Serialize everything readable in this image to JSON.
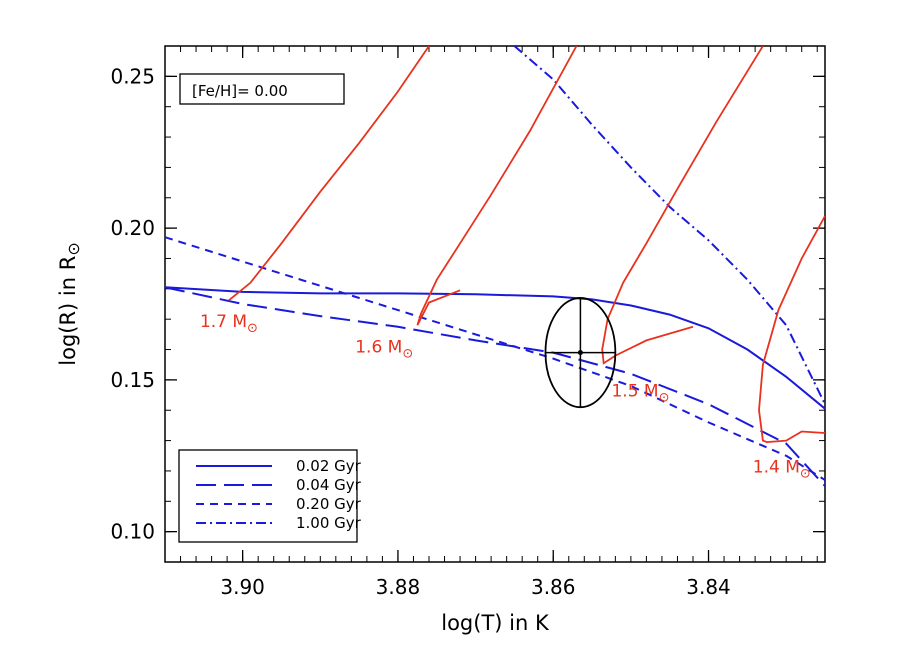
{
  "chart_data": {
    "type": "line",
    "xlabel": "log(T) in K",
    "ylabel": "log(R) in R",
    "ylabel_symbol": "⊙",
    "xlim": [
      3.91,
      3.825
    ],
    "ylim": [
      0.09,
      0.26
    ],
    "x_ticks": [
      3.9,
      3.88,
      3.86,
      3.84
    ],
    "x_tick_labels": [
      "3.90",
      "3.88",
      "3.86",
      "3.84"
    ],
    "y_ticks": [
      0.1,
      0.15,
      0.2,
      0.25
    ],
    "y_tick_labels": [
      "0.10",
      "0.15",
      "0.20",
      "0.25"
    ],
    "metallicity_label": "[Fe/H]= 0.00",
    "legend_position": "bottom-left",
    "colors": {
      "isochrone": "#1a1adc",
      "track": "#e8321e",
      "star": "#000000"
    },
    "isochrones": [
      {
        "name": "0.02 Gyr",
        "dash": "solid",
        "points": [
          [
            3.91,
            0.1805
          ],
          [
            3.9,
            0.179
          ],
          [
            3.89,
            0.1785
          ],
          [
            3.88,
            0.1785
          ],
          [
            3.87,
            0.1782
          ],
          [
            3.86,
            0.1775
          ],
          [
            3.855,
            0.1765
          ],
          [
            3.85,
            0.1745
          ],
          [
            3.845,
            0.1715
          ],
          [
            3.84,
            0.167
          ],
          [
            3.835,
            0.16
          ],
          [
            3.83,
            0.151
          ],
          [
            3.825,
            0.1405
          ]
        ]
      },
      {
        "name": "0.04 Gyr",
        "dash": "longdash",
        "points": [
          [
            3.91,
            0.1805
          ],
          [
            3.9,
            0.175
          ],
          [
            3.89,
            0.171
          ],
          [
            3.88,
            0.1675
          ],
          [
            3.87,
            0.163
          ],
          [
            3.86,
            0.159
          ],
          [
            3.85,
            0.152
          ],
          [
            3.84,
            0.142
          ],
          [
            3.83,
            0.129
          ],
          [
            3.825,
            0.115
          ]
        ]
      },
      {
        "name": "0.20 Gyr",
        "dash": "shortdash",
        "points": [
          [
            3.91,
            0.197
          ],
          [
            3.9,
            0.189
          ],
          [
            3.89,
            0.181
          ],
          [
            3.88,
            0.173
          ],
          [
            3.87,
            0.165
          ],
          [
            3.86,
            0.157
          ],
          [
            3.85,
            0.148
          ],
          [
            3.84,
            0.136
          ],
          [
            3.83,
            0.125
          ],
          [
            3.825,
            0.117
          ]
        ]
      },
      {
        "name": "1.00 Gyr",
        "dash": "dashdot",
        "points": [
          [
            3.865,
            0.26
          ],
          [
            3.86,
            0.249
          ],
          [
            3.855,
            0.234
          ],
          [
            3.85,
            0.22
          ],
          [
            3.845,
            0.207
          ],
          [
            3.84,
            0.196
          ],
          [
            3.835,
            0.183
          ],
          [
            3.83,
            0.168
          ],
          [
            3.825,
            0.142
          ]
        ]
      }
    ],
    "tracks": [
      {
        "name": "1.7 M",
        "label_pos": [
          3.9055,
          0.1675
        ],
        "points": [
          [
            3.9018,
            0.1762
          ],
          [
            3.899,
            0.182
          ],
          [
            3.895,
            0.195
          ],
          [
            3.89,
            0.212
          ],
          [
            3.885,
            0.228
          ],
          [
            3.88,
            0.245
          ],
          [
            3.876,
            0.26
          ]
        ]
      },
      {
        "name": "1.6 M",
        "label_pos": [
          3.8855,
          0.159
        ],
        "points": [
          [
            3.872,
            0.1795
          ],
          [
            3.876,
            0.1755
          ],
          [
            3.8775,
            0.168
          ],
          [
            3.877,
            0.172
          ],
          [
            3.875,
            0.183
          ],
          [
            3.872,
            0.195
          ],
          [
            3.868,
            0.211
          ],
          [
            3.863,
            0.232
          ],
          [
            3.857,
            0.26
          ]
        ]
      },
      {
        "name": "1.5 M",
        "label_pos": [
          3.8525,
          0.1445
        ],
        "points": [
          [
            3.842,
            0.1675
          ],
          [
            3.848,
            0.163
          ],
          [
            3.852,
            0.158
          ],
          [
            3.8535,
            0.1555
          ],
          [
            3.8537,
            0.16
          ],
          [
            3.853,
            0.17
          ],
          [
            3.851,
            0.182
          ],
          [
            3.848,
            0.195
          ],
          [
            3.844,
            0.213
          ],
          [
            3.839,
            0.235
          ],
          [
            3.833,
            0.26
          ]
        ]
      },
      {
        "name": "1.4 M",
        "label_pos": [
          3.8343,
          0.1195
        ],
        "points": [
          [
            3.825,
            0.1325
          ],
          [
            3.828,
            0.133
          ],
          [
            3.83,
            0.13
          ],
          [
            3.8325,
            0.1295
          ],
          [
            3.833,
            0.13
          ],
          [
            3.8335,
            0.14
          ],
          [
            3.833,
            0.155
          ],
          [
            3.831,
            0.173
          ],
          [
            3.828,
            0.19
          ],
          [
            3.825,
            0.204
          ]
        ]
      }
    ],
    "star": {
      "logT": 3.8565,
      "logR": 0.159,
      "err_logT": 0.0045,
      "err_logR": 0.018
    }
  }
}
